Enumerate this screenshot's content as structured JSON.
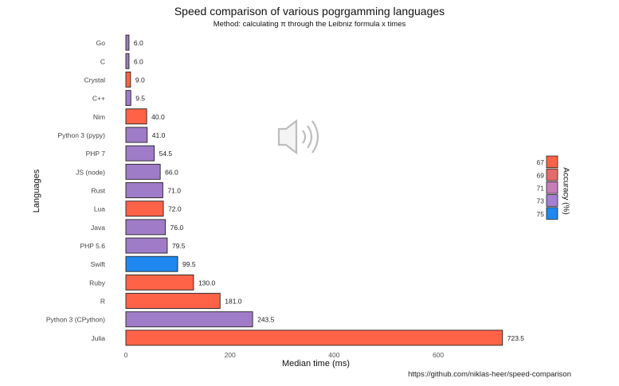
{
  "chart_data": {
    "type": "bar",
    "orientation": "horizontal",
    "title": "Speed comparison of various pogrgamming languages",
    "subtitle": "Method: calculating π through the Leibniz formula x times",
    "xlabel": "Median time (ms)",
    "ylabel": "Languages",
    "source": "https://github.com/niklas-heer/speed-comparison",
    "xlim": [
      0,
      730
    ],
    "xticks": [
      0,
      200,
      400,
      600
    ],
    "grid": false,
    "legend": {
      "title": "Accuracy (%)",
      "placement": "right",
      "entries": [
        {
          "label": "67",
          "color": "#ff6347"
        },
        {
          "label": "69",
          "color": "#e66a6a"
        },
        {
          "label": "71",
          "color": "#c87dba"
        },
        {
          "label": "73",
          "color": "#a57fd1"
        },
        {
          "label": "75",
          "color": "#1e88f0"
        }
      ]
    },
    "bars": [
      {
        "category": "Go",
        "value": 6.0,
        "label": "6.0",
        "color": "#a07cc8"
      },
      {
        "category": "C",
        "value": 6.0,
        "label": "6.0",
        "color": "#a07cc8"
      },
      {
        "category": "Crystal",
        "value": 9.0,
        "label": "9.0",
        "color": "#ff6347"
      },
      {
        "category": "C++",
        "value": 9.5,
        "label": "9.5",
        "color": "#a07cc8"
      },
      {
        "category": "Nim",
        "value": 40.0,
        "label": "40.0",
        "color": "#ff6347"
      },
      {
        "category": "Python 3 (pypy)",
        "value": 41.0,
        "label": "41.0",
        "color": "#a07cc8"
      },
      {
        "category": "PHP 7",
        "value": 54.5,
        "label": "54.5",
        "color": "#a07cc8"
      },
      {
        "category": "JS (node)",
        "value": 66.0,
        "label": "66.0",
        "color": "#a07cc8"
      },
      {
        "category": "Rust",
        "value": 71.0,
        "label": "71.0",
        "color": "#a07cc8"
      },
      {
        "category": "Lua",
        "value": 72.0,
        "label": "72.0",
        "color": "#ff6347"
      },
      {
        "category": "Java",
        "value": 76.0,
        "label": "76.0",
        "color": "#a07cc8"
      },
      {
        "category": "PHP 5.6",
        "value": 79.5,
        "label": "79.5",
        "color": "#a07cc8"
      },
      {
        "category": "Swift",
        "value": 99.5,
        "label": "99.5",
        "color": "#1e88f0"
      },
      {
        "category": "Ruby",
        "value": 130.0,
        "label": "130.0",
        "color": "#ff6347"
      },
      {
        "category": "R",
        "value": 181.0,
        "label": "181.0",
        "color": "#ff6347"
      },
      {
        "category": "Python 3 (CPython)",
        "value": 243.5,
        "label": "243.5",
        "color": "#a07cc8"
      },
      {
        "category": "Julia",
        "value": 723.5,
        "label": "723.5",
        "color": "#ff6347"
      }
    ]
  },
  "overlay": {
    "icon": "speaker-icon"
  }
}
